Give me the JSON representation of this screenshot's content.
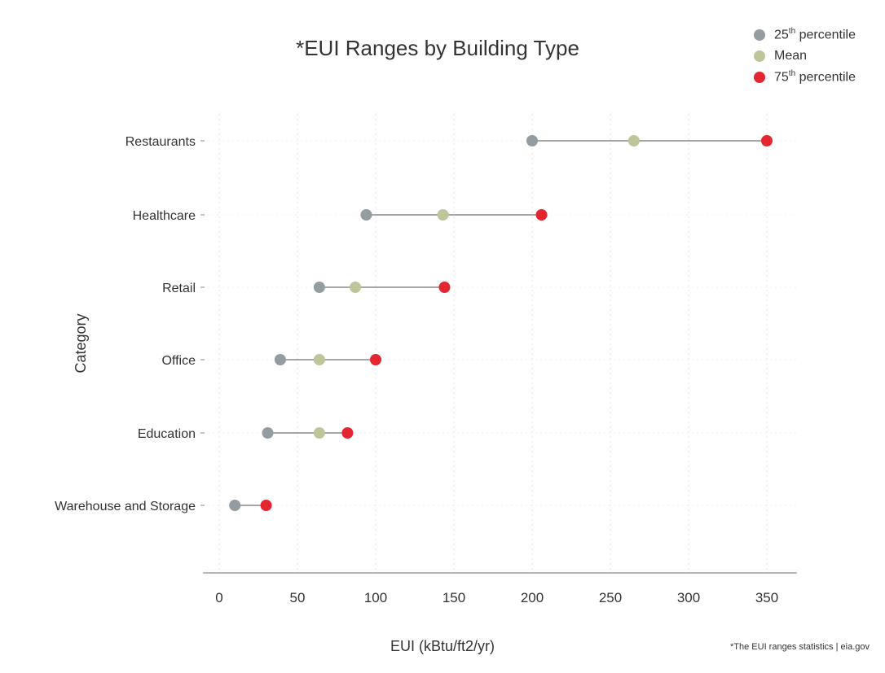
{
  "chart_data": {
    "type": "dot-range",
    "title": "*EUI Ranges by Building Type",
    "xlabel": "EUI (kBtu/ft2/yr)",
    "ylabel": "Category",
    "xlim": [
      -10,
      368
    ],
    "xticks": [
      0,
      50,
      100,
      150,
      200,
      250,
      300,
      350
    ],
    "grid": true,
    "legend_placement": "top-right",
    "categories": [
      "Restaurants",
      "Healthcare",
      "Retail",
      "Office",
      "Education",
      "Warehouse and Storage"
    ],
    "series": [
      {
        "name": "25th percentile",
        "name_base": "25",
        "name_sup": "th",
        "name_rest": " percentile",
        "color": "#939ca0",
        "values": [
          200,
          94,
          64,
          39,
          31,
          10
        ]
      },
      {
        "name": "Mean",
        "name_base": "Mean",
        "name_sup": "",
        "name_rest": "",
        "color": "#bfc59a",
        "values": [
          265,
          143,
          87,
          64,
          64,
          null
        ]
      },
      {
        "name": "75th percentile",
        "name_base": "75",
        "name_sup": "th",
        "name_rest": " percentile",
        "color": "#e3262f",
        "values": [
          350,
          206,
          144,
          100,
          82,
          30
        ]
      }
    ],
    "caption": "*The EUI ranges statistics | eia.gov"
  }
}
